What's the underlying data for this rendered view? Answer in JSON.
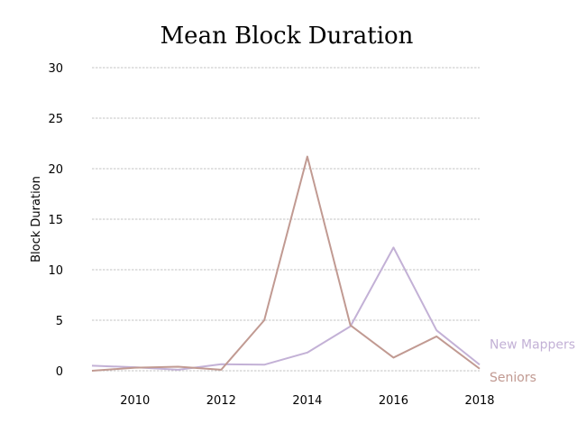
{
  "chart_data": {
    "type": "line",
    "title": "Mean Block Duration",
    "xlabel": "",
    "ylabel": "Block Duration",
    "x": [
      2009,
      2010,
      2011,
      2012,
      2013,
      2014,
      2015,
      2016,
      2017,
      2018
    ],
    "xlim": [
      2009,
      2018
    ],
    "ylim": [
      0,
      30
    ],
    "xticks": [
      2010,
      2012,
      2014,
      2016,
      2018
    ],
    "yticks": [
      0,
      5,
      10,
      15,
      20,
      25,
      30
    ],
    "grid": "horizontal",
    "legend": "inline labels at right end of lines",
    "series": [
      {
        "name": "New Mappers",
        "color": "#c3b1d6",
        "values": [
          0.5,
          0.35,
          0.1,
          0.65,
          0.6,
          1.8,
          4.4,
          12.2,
          4.0,
          0.6
        ]
      },
      {
        "name": "Seniors",
        "color": "#c19a92",
        "values": [
          0.0,
          0.3,
          0.4,
          0.1,
          5.0,
          21.2,
          4.5,
          1.3,
          3.4,
          0.2
        ]
      }
    ]
  }
}
